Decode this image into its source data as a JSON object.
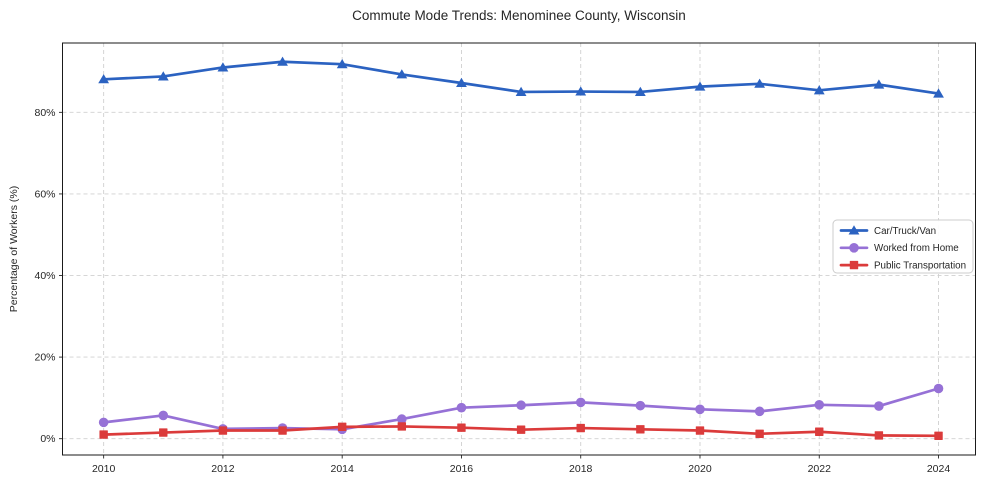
{
  "chart_data": {
    "type": "line",
    "title": "Commute Mode Trends: Menominee County, Wisconsin",
    "xlabel": "",
    "ylabel": "Percentage of Workers (%)",
    "x": [
      2010,
      2011,
      2012,
      2013,
      2014,
      2015,
      2016,
      2017,
      2018,
      2019,
      2020,
      2021,
      2022,
      2023,
      2024
    ],
    "series": [
      {
        "name": "Car/Truck/Van",
        "color": "#2b62c1",
        "marker": "triangle",
        "values": [
          88.1,
          88.8,
          91.0,
          92.4,
          91.8,
          89.3,
          87.2,
          85.0,
          85.1,
          85.0,
          86.3,
          87.0,
          85.4,
          86.8,
          84.6
        ]
      },
      {
        "name": "Worked from Home",
        "color": "#9671d6",
        "marker": "circle",
        "values": [
          4.0,
          5.7,
          2.4,
          2.6,
          2.3,
          4.8,
          7.6,
          8.2,
          8.9,
          8.1,
          7.2,
          6.7,
          8.3,
          8.0,
          12.3
        ]
      },
      {
        "name": "Public Transportation",
        "color": "#db3b3b",
        "marker": "square",
        "values": [
          1.0,
          1.5,
          2.0,
          2.0,
          2.9,
          3.0,
          2.7,
          2.2,
          2.6,
          2.3,
          2.0,
          1.2,
          1.7,
          0.8,
          0.7
        ]
      }
    ],
    "xticks": [
      2010,
      2012,
      2014,
      2016,
      2018,
      2020,
      2022,
      2024
    ],
    "xtick_labels": [
      "2010",
      "2012",
      "2014",
      "2016",
      "2018",
      "2020",
      "2022",
      "2024"
    ],
    "yticks": [
      0,
      20,
      40,
      60,
      80
    ],
    "ytick_labels": [
      "0%",
      "20%",
      "40%",
      "60%",
      "80%"
    ],
    "xlim": [
      2009.31,
      2024.62
    ],
    "ylim": [
      -4,
      97
    ],
    "grid": true,
    "legend_position": "center-right"
  },
  "style": {
    "grid_color": "#d0d0d0",
    "spine_color": "#1a1a1a",
    "tick_color": "#262626",
    "text_color": "#262626",
    "legend_border_color": "#cccccc",
    "legend_bg_color": "#ffffff",
    "plot_bg_color": "#ffffff"
  }
}
